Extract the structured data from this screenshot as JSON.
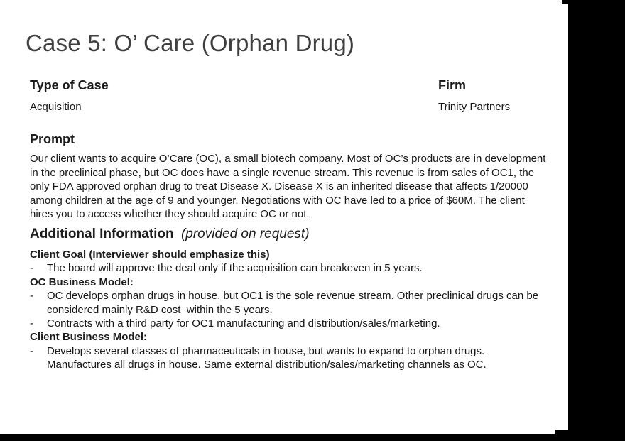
{
  "page": {
    "title": "Case 5: O’ Care (Orphan Drug)",
    "meta": {
      "type_label": "Type of Case",
      "type_value": "Acquisition",
      "firm_label": "Firm",
      "firm_value": "Trinity Partners"
    },
    "prompt": {
      "heading": "Prompt",
      "body": "Our client wants to acquire O’Care (OC), a small biotech company. Most of OC’s products are in development in the preclinical phase, but OC does have a single revenue stream. This revenue is from sales of OC1, the only FDA approved orphan drug to treat Disease X. Disease X is an inherited disease that affects 1/20000 among children at the age of 9 and younger. Negotiations with OC have led to a price of $60M. The client hires you to access whether they should acquire OC or not."
    },
    "additional": {
      "heading": "Additional Information",
      "heading_suffix": "(provided on request)",
      "bullet_marker": "-",
      "sections": [
        {
          "heading": "Client Goal (Interviewer should emphasize this)",
          "bullets": [
            "The board will approve the deal only if the acquisition can breakeven in 5 years."
          ]
        },
        {
          "heading": "OC Business Model:",
          "bullets": [
            "OC develops orphan drugs in house, but OC1 is the sole revenue stream. Other preclinical drugs can be considered mainly R&D cost  within the 5 years.",
            "Contracts with a third party for OC1 manufacturing and distribution/sales/marketing."
          ]
        },
        {
          "heading": "Client Business Model:",
          "bullets": [
            "Develops several classes of pharmaceuticals in house, but wants to expand to orphan drugs. Manufactures all drugs in house. Same external distribution/sales/marketing channels as OC."
          ]
        }
      ]
    }
  },
  "colors": {
    "page_bg": "#ffffff",
    "text": "#161616",
    "backdrop": "#000000"
  }
}
